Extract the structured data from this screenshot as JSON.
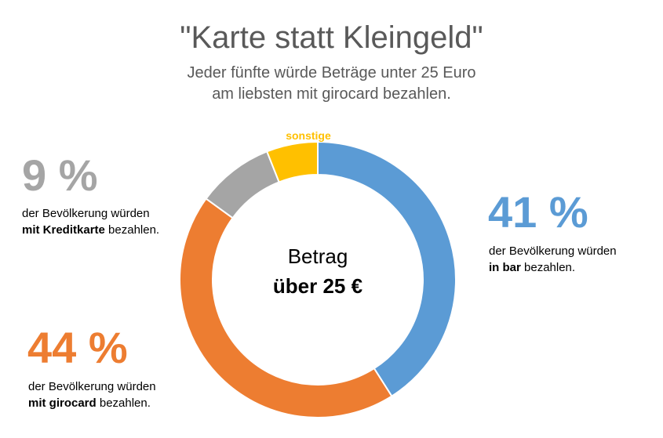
{
  "title": "\"Karte statt Kleingeld\"",
  "subtitle_line1": "Jeder fünfte würde Beträge unter 25 Euro",
  "subtitle_line2": "am liebsten mit girocard bezahlen.",
  "callouts": {
    "kredit": {
      "value": "9 %",
      "line1": "der Bevölkerung würden",
      "bold": "mit Kreditkarte",
      "rest": " bezahlen."
    },
    "bar": {
      "value": "41 %",
      "line1": "der Bevölkerung würden",
      "bold": "in bar",
      "rest": " bezahlen."
    },
    "girocard": {
      "value": "44 %",
      "line1": "der Bevölkerung würden",
      "bold": "mit girocard",
      "rest": " bezahlen."
    }
  },
  "chart_data": {
    "type": "pie",
    "variant": "donut",
    "center_label_line1": "Betrag",
    "center_label_line2": "über 25 €",
    "start": "top",
    "direction": "clockwise",
    "slices": [
      {
        "name": "bar",
        "value": 41,
        "color": "#5B9BD5"
      },
      {
        "name": "girocard",
        "value": 44,
        "color": "#ED7D31"
      },
      {
        "name": "Kreditkarte",
        "value": 9,
        "color": "#A5A5A5"
      },
      {
        "name": "sonstige",
        "value": 6,
        "color": "#FFC000",
        "label": "sonstige"
      }
    ]
  },
  "colors": {
    "title": "#595959",
    "kredit": "#A5A5A5",
    "bar": "#5B9BD5",
    "girocard": "#ED7D31",
    "sonstige": "#FFC000"
  }
}
